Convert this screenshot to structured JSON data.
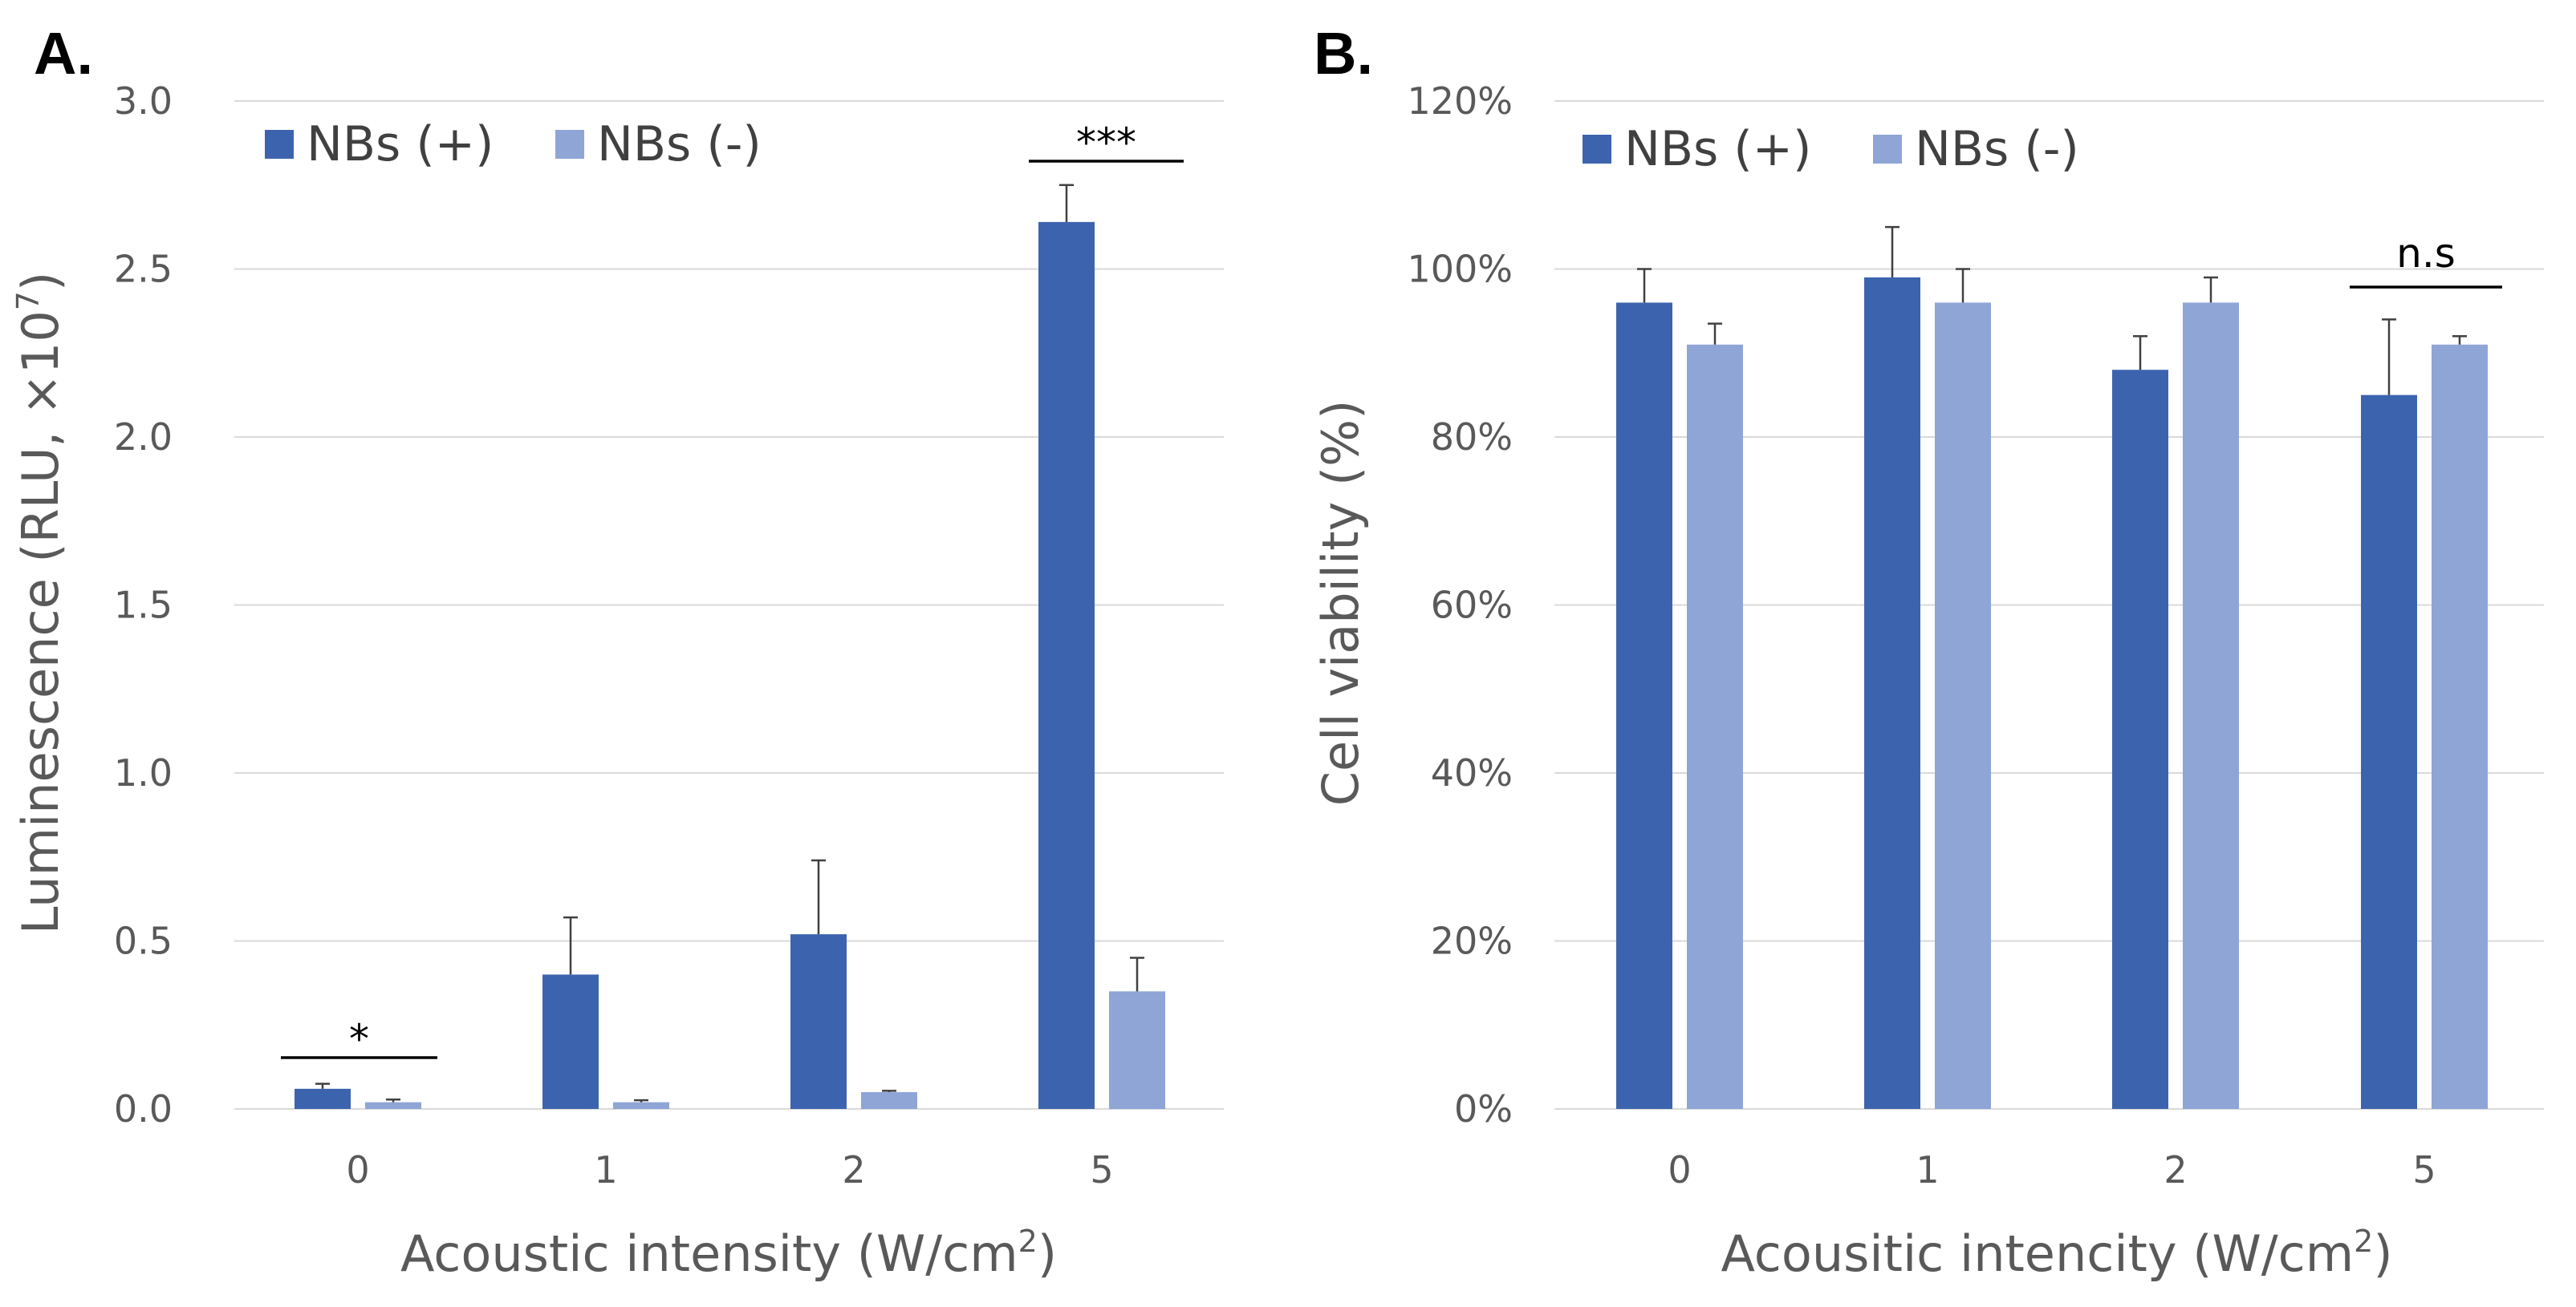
{
  "chart_data": [
    {
      "panel": "A.",
      "type": "bar",
      "categories": [
        "0",
        "1",
        "2",
        "5"
      ],
      "series": [
        {
          "name": "NBs (+)",
          "color": "#3c64ae",
          "values": [
            0.06,
            0.4,
            0.52,
            2.64
          ],
          "errors": [
            0.015,
            0.17,
            0.22,
            0.11
          ]
        },
        {
          "name": "NBs (-)",
          "color": "#8ea5d6",
          "values": [
            0.02,
            0.02,
            0.05,
            0.35
          ],
          "errors": [
            0.008,
            0.006,
            0.004,
            0.1
          ]
        }
      ],
      "ylim": [
        0,
        3.0
      ],
      "yticks": [
        "0.0",
        "0.5",
        "1.0",
        "1.5",
        "2.0",
        "2.5",
        "3.0"
      ],
      "ylabel": "Luminescence (RLU, ×10",
      "ylabel_sup": "7",
      "ylabel_end": ")",
      "xlabel": "Acoustic intensity (W/cm",
      "xlabel_sup": "2",
      "xlabel_end": ")",
      "legend_position": "top-left",
      "annotations": [
        {
          "text": "*",
          "category": "0"
        },
        {
          "text": "***",
          "category": "5"
        }
      ]
    },
    {
      "panel": "B.",
      "type": "bar",
      "categories": [
        "0",
        "1",
        "2",
        "5"
      ],
      "series": [
        {
          "name": "NBs (+)",
          "color": "#3c64ae",
          "values": [
            96,
            99,
            88,
            85
          ],
          "errors": [
            4,
            6,
            4,
            9
          ]
        },
        {
          "name": "NBs (-)",
          "color": "#8ea5d6",
          "values": [
            91,
            96,
            96,
            91
          ],
          "errors": [
            2.5,
            4,
            3,
            1
          ]
        }
      ],
      "ylim": [
        0,
        120
      ],
      "yticks": [
        "0%",
        "20%",
        "40%",
        "60%",
        "80%",
        "100%",
        "120%"
      ],
      "ylabel": "Cell viability (%)",
      "ylabel_sup": "",
      "ylabel_end": "",
      "xlabel": "Acousitic intencity (W/cm",
      "xlabel_sup": "2",
      "xlabel_end": ")",
      "legend_position": "top-left",
      "annotations": [
        {
          "text": "n.s",
          "category": "5"
        }
      ]
    }
  ]
}
